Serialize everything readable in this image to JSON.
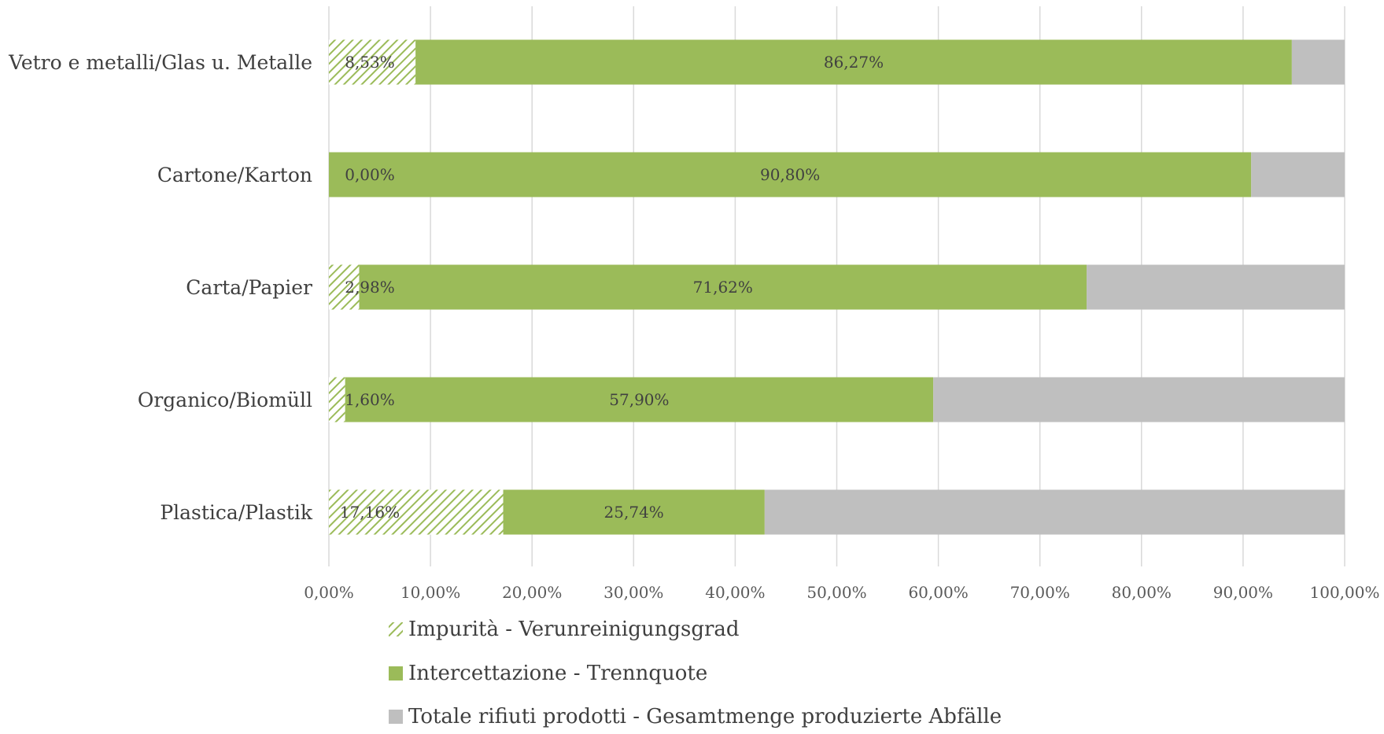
{
  "chart_data": {
    "type": "bar",
    "orientation": "horizontal",
    "stacked": "percent",
    "categories": [
      "Vetro e metalli/Glas u. Metalle",
      "Cartone/Karton",
      "Carta/Papier",
      "Organico/Biomüll",
      "Plastica/Plastik"
    ],
    "series": [
      {
        "name": "Impurità - Verunreinigungsgrad",
        "values": [
          8.53,
          0.0,
          2.98,
          1.6,
          17.16
        ],
        "labels": [
          "8,53%",
          "0,00%",
          "2,98%",
          "1,60%",
          "17,16%"
        ],
        "color": "#9bbb59",
        "pattern": "diagonal-hatch"
      },
      {
        "name": "Intercettazione - Trennquote",
        "values": [
          86.27,
          90.8,
          71.62,
          57.9,
          25.74
        ],
        "labels": [
          "86,27%",
          "90,80%",
          "71,62%",
          "57,90%",
          "25,74%"
        ],
        "color": "#9bbb59",
        "pattern": "solid"
      },
      {
        "name": "Totale rifiuti prodotti - Gesamtmenge produzierte Abfälle",
        "values": [
          5.2,
          9.2,
          25.4,
          40.5,
          57.1
        ],
        "color": "#bfbfbf",
        "pattern": "solid"
      }
    ],
    "xlim": [
      0,
      100
    ],
    "x_ticks": [
      "0,00%",
      "10,00%",
      "20,00%",
      "30,00%",
      "40,00%",
      "50,00%",
      "60,00%",
      "70,00%",
      "80,00%",
      "90,00%",
      "100,00%"
    ],
    "grid": "vertical",
    "legend": "bottom",
    "title": "",
    "xlabel": "",
    "ylabel": ""
  }
}
